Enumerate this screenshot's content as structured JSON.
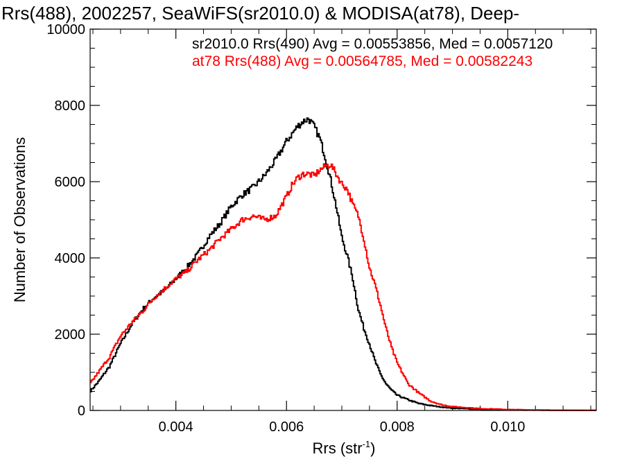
{
  "chart_data": {
    "type": "line",
    "title": "Rrs(488), 2002257, SeaWiFS(sr2010.0) & MODISA(at78), Deep-",
    "xlabel": "Rrs (str",
    "xlabel_sup": "-1",
    "xlabel_close": ")",
    "ylabel": "Number of Observations",
    "xlim": [
      0.00245,
      0.0116
    ],
    "ylim": [
      0,
      10000
    ],
    "x_ticks": [
      {
        "value": 0.004,
        "label": "0.004"
      },
      {
        "value": 0.006,
        "label": "0.006"
      },
      {
        "value": 0.008,
        "label": "0.008"
      },
      {
        "value": 0.01,
        "label": "0.010"
      }
    ],
    "y_ticks": [
      {
        "value": 0,
        "label": "0"
      },
      {
        "value": 2000,
        "label": "2000"
      },
      {
        "value": 4000,
        "label": "4000"
      },
      {
        "value": 6000,
        "label": "6000"
      },
      {
        "value": 8000,
        "label": "8000"
      },
      {
        "value": 10000,
        "label": "10000"
      }
    ],
    "grid": false,
    "annotations": [
      {
        "text": "sr2010.0 Rrs(490) Avg = 0.00553856, Med = 0.0057120",
        "color": "#000000"
      },
      {
        "text": "at78 Rrs(488) Avg = 0.00564785, Med = 0.00582243",
        "color": "#ff0000"
      }
    ],
    "series": [
      {
        "color": "#000000",
        "x": [
          0.00245,
          0.0026,
          0.0028,
          0.003,
          0.0032,
          0.0034,
          0.0036,
          0.0038,
          0.004,
          0.0042,
          0.0044,
          0.0046,
          0.0048,
          0.005,
          0.0052,
          0.0054,
          0.0056,
          0.0058,
          0.006,
          0.0061,
          0.0062,
          0.0063,
          0.0064,
          0.0065,
          0.0066,
          0.0067,
          0.0068,
          0.0069,
          0.007,
          0.0071,
          0.0072,
          0.0073,
          0.0074,
          0.0075,
          0.0076,
          0.0077,
          0.0078,
          0.0079,
          0.008,
          0.0082,
          0.0084,
          0.0086,
          0.0088,
          0.009,
          0.0095,
          0.01,
          0.0105,
          0.011,
          0.0116
        ],
        "y": [
          500,
          750,
          1150,
          1750,
          2250,
          2650,
          2950,
          3150,
          3450,
          3750,
          4100,
          4550,
          4900,
          5350,
          5650,
          5850,
          6150,
          6550,
          7050,
          7250,
          7450,
          7580,
          7650,
          7450,
          7150,
          6650,
          6050,
          5350,
          4550,
          4050,
          3450,
          2650,
          2150,
          1750,
          1300,
          950,
          700,
          530,
          400,
          280,
          180,
          130,
          90,
          60,
          30,
          15,
          8,
          4,
          2
        ]
      },
      {
        "color": "#ff0000",
        "x": [
          0.00245,
          0.0026,
          0.0028,
          0.003,
          0.0032,
          0.0034,
          0.0036,
          0.0038,
          0.004,
          0.0042,
          0.0044,
          0.0046,
          0.0048,
          0.005,
          0.0052,
          0.0054,
          0.0056,
          0.0058,
          0.006,
          0.0061,
          0.0062,
          0.0063,
          0.0064,
          0.0065,
          0.0066,
          0.0067,
          0.0068,
          0.0069,
          0.007,
          0.0071,
          0.0072,
          0.0073,
          0.0074,
          0.0075,
          0.0076,
          0.0077,
          0.0078,
          0.0079,
          0.008,
          0.0082,
          0.0084,
          0.0086,
          0.0088,
          0.009,
          0.0095,
          0.01,
          0.0105,
          0.011,
          0.0116
        ],
        "y": [
          700,
          1000,
          1400,
          1950,
          2300,
          2600,
          2950,
          3200,
          3450,
          3650,
          3950,
          4200,
          4500,
          4750,
          5000,
          5100,
          5000,
          5100,
          5600,
          5900,
          6100,
          6200,
          6200,
          6150,
          6300,
          6400,
          6450,
          6200,
          5950,
          5800,
          5400,
          5100,
          4500,
          3750,
          3300,
          2750,
          2150,
          1650,
          1250,
          700,
          450,
          250,
          150,
          100,
          50,
          25,
          12,
          6,
          3
        ]
      }
    ]
  }
}
